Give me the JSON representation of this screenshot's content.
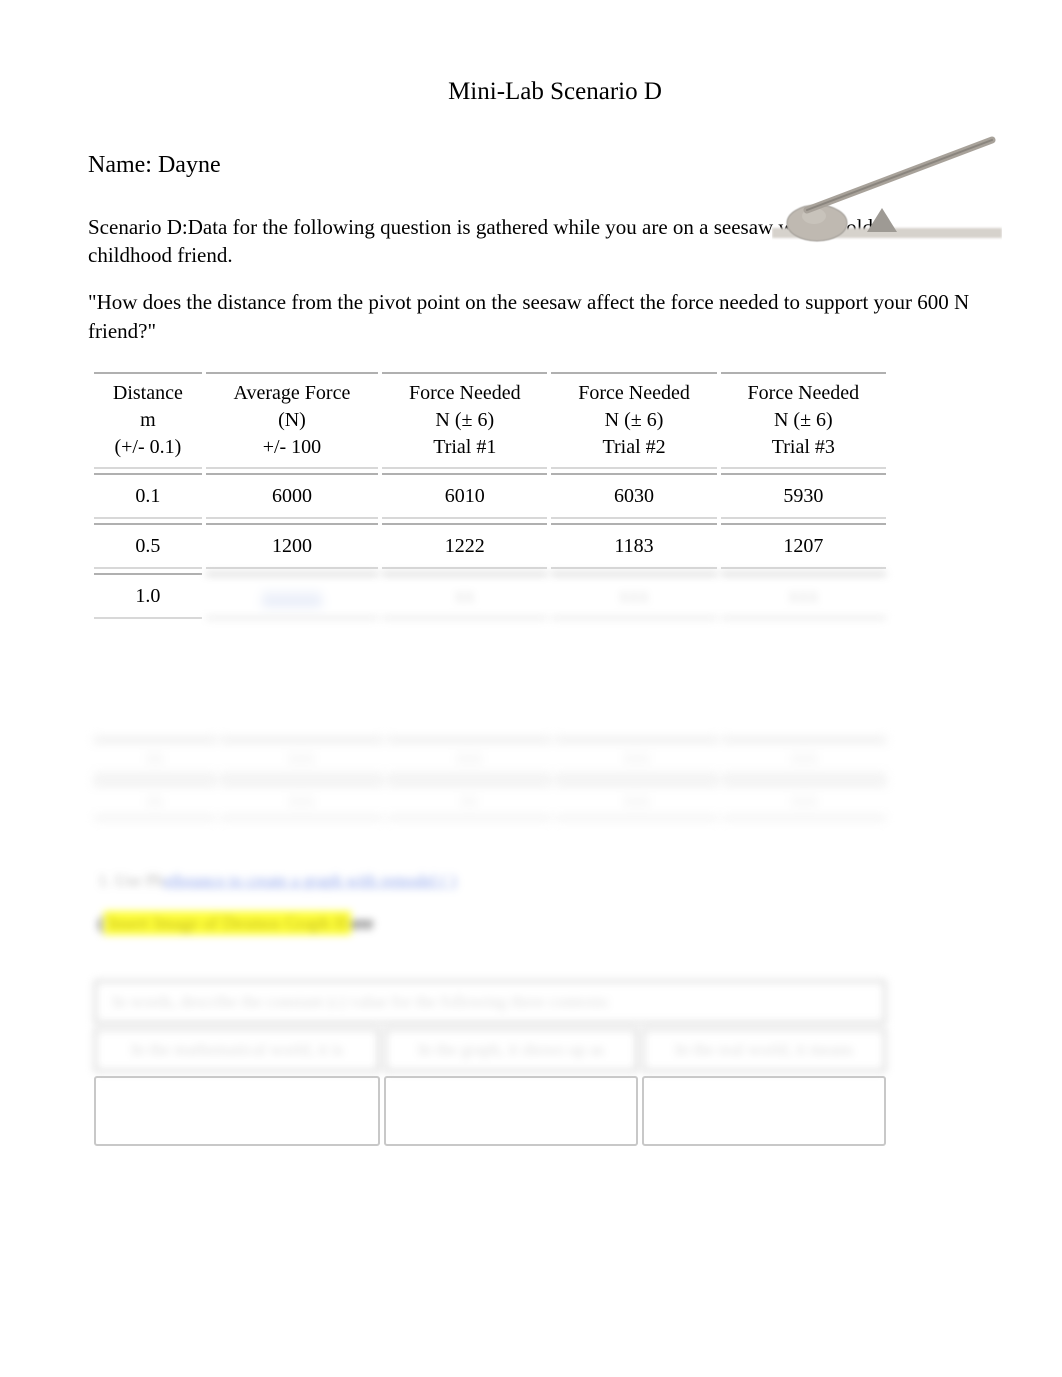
{
  "title": "Mini-Lab Scenario D",
  "name_line": "Name: Dayne",
  "scenario_text": "Scenario D:Data for the following question is gathered while you are on a seesaw with an old childhood friend.",
  "question_text": "\"How does the distance from the pivot point on the seesaw affect the force needed to support your 600 N friend?\"",
  "lever": {
    "stick_color": "#a8a29a",
    "rock_color": "#bfb9b1",
    "ground_color": "#d6d2cc",
    "fulcrum_color": "#9e9a94"
  },
  "table": {
    "headers": [
      "Distance\nm\n(+/- 0.1)",
      "Average Force\n(N)\n+/- 100",
      "Force Needed\nN (± 6)\nTrial #1",
      "Force Needed\nN (± 6)\nTrial #2",
      "Force Needed\nN (± 6)\nTrial #3"
    ],
    "rows": [
      [
        "0.1",
        "6000",
        "6010",
        "6030",
        "5930"
      ],
      [
        "0.5",
        "1200",
        "1222",
        "1183",
        "1207"
      ],
      [
        "1.0",
        "xxxxxx",
        "xx",
        "xxx",
        "xxx"
      ]
    ],
    "col_widths": [
      "150px",
      "160px",
      "160px",
      "160px",
      "160px"
    ],
    "header_fontsize": 20,
    "cell_fontsize": 20,
    "border_color": "#b0b0b0"
  },
  "blurred_second_table": {
    "rows": [
      [
        "xx",
        "xxx",
        "xxx",
        "xxx",
        "xxx"
      ],
      [
        "xx",
        "xxx",
        "xx",
        "xxx",
        "xxx"
      ]
    ]
  },
  "blur_link_line": {
    "prefix": "1. Use Ph",
    "link": "etbounce to create a graph with remodel ( )"
  },
  "highlight_line": {
    "prefix": "(",
    "highlighted": "Insert Image of Desmos Graph H",
    "suffix": "ere"
  },
  "box_section": {
    "top_row": "In words, describe the constant (c) value for the following three contexts:",
    "headers": [
      "In the mathematical world, it is",
      "In the graph, it shows up as",
      "In the real world, it means"
    ]
  }
}
